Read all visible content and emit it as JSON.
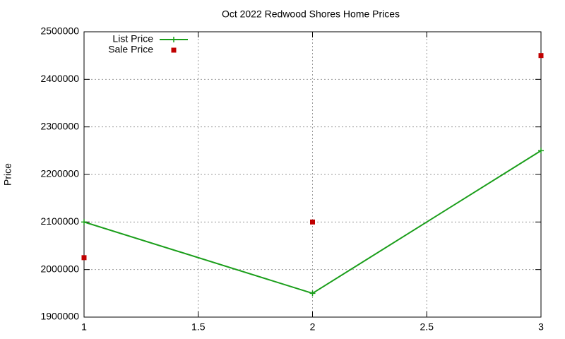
{
  "chart_data": {
    "type": "line",
    "title": "Oct 2022 Redwood Shores Home Prices",
    "y_label": "Price",
    "x": [
      1,
      2,
      3
    ],
    "series": [
      {
        "name": "List Price",
        "color": "#1a9e1a",
        "mode": "lines+markers",
        "values": [
          2100000,
          1950000,
          2250000
        ]
      },
      {
        "name": "Sale Price",
        "color": "#c00000",
        "mode": "markers",
        "values": [
          2025000,
          2100000,
          2450000
        ]
      }
    ],
    "xlim": [
      1,
      3
    ],
    "xticks": [
      1,
      1.5,
      2,
      2.5,
      3
    ],
    "ylim": [
      1900000,
      2500000
    ],
    "yticks": [
      1900000,
      2000000,
      2100000,
      2200000,
      2300000,
      2400000,
      2500000
    ],
    "grid": true,
    "legend": "top-left"
  }
}
